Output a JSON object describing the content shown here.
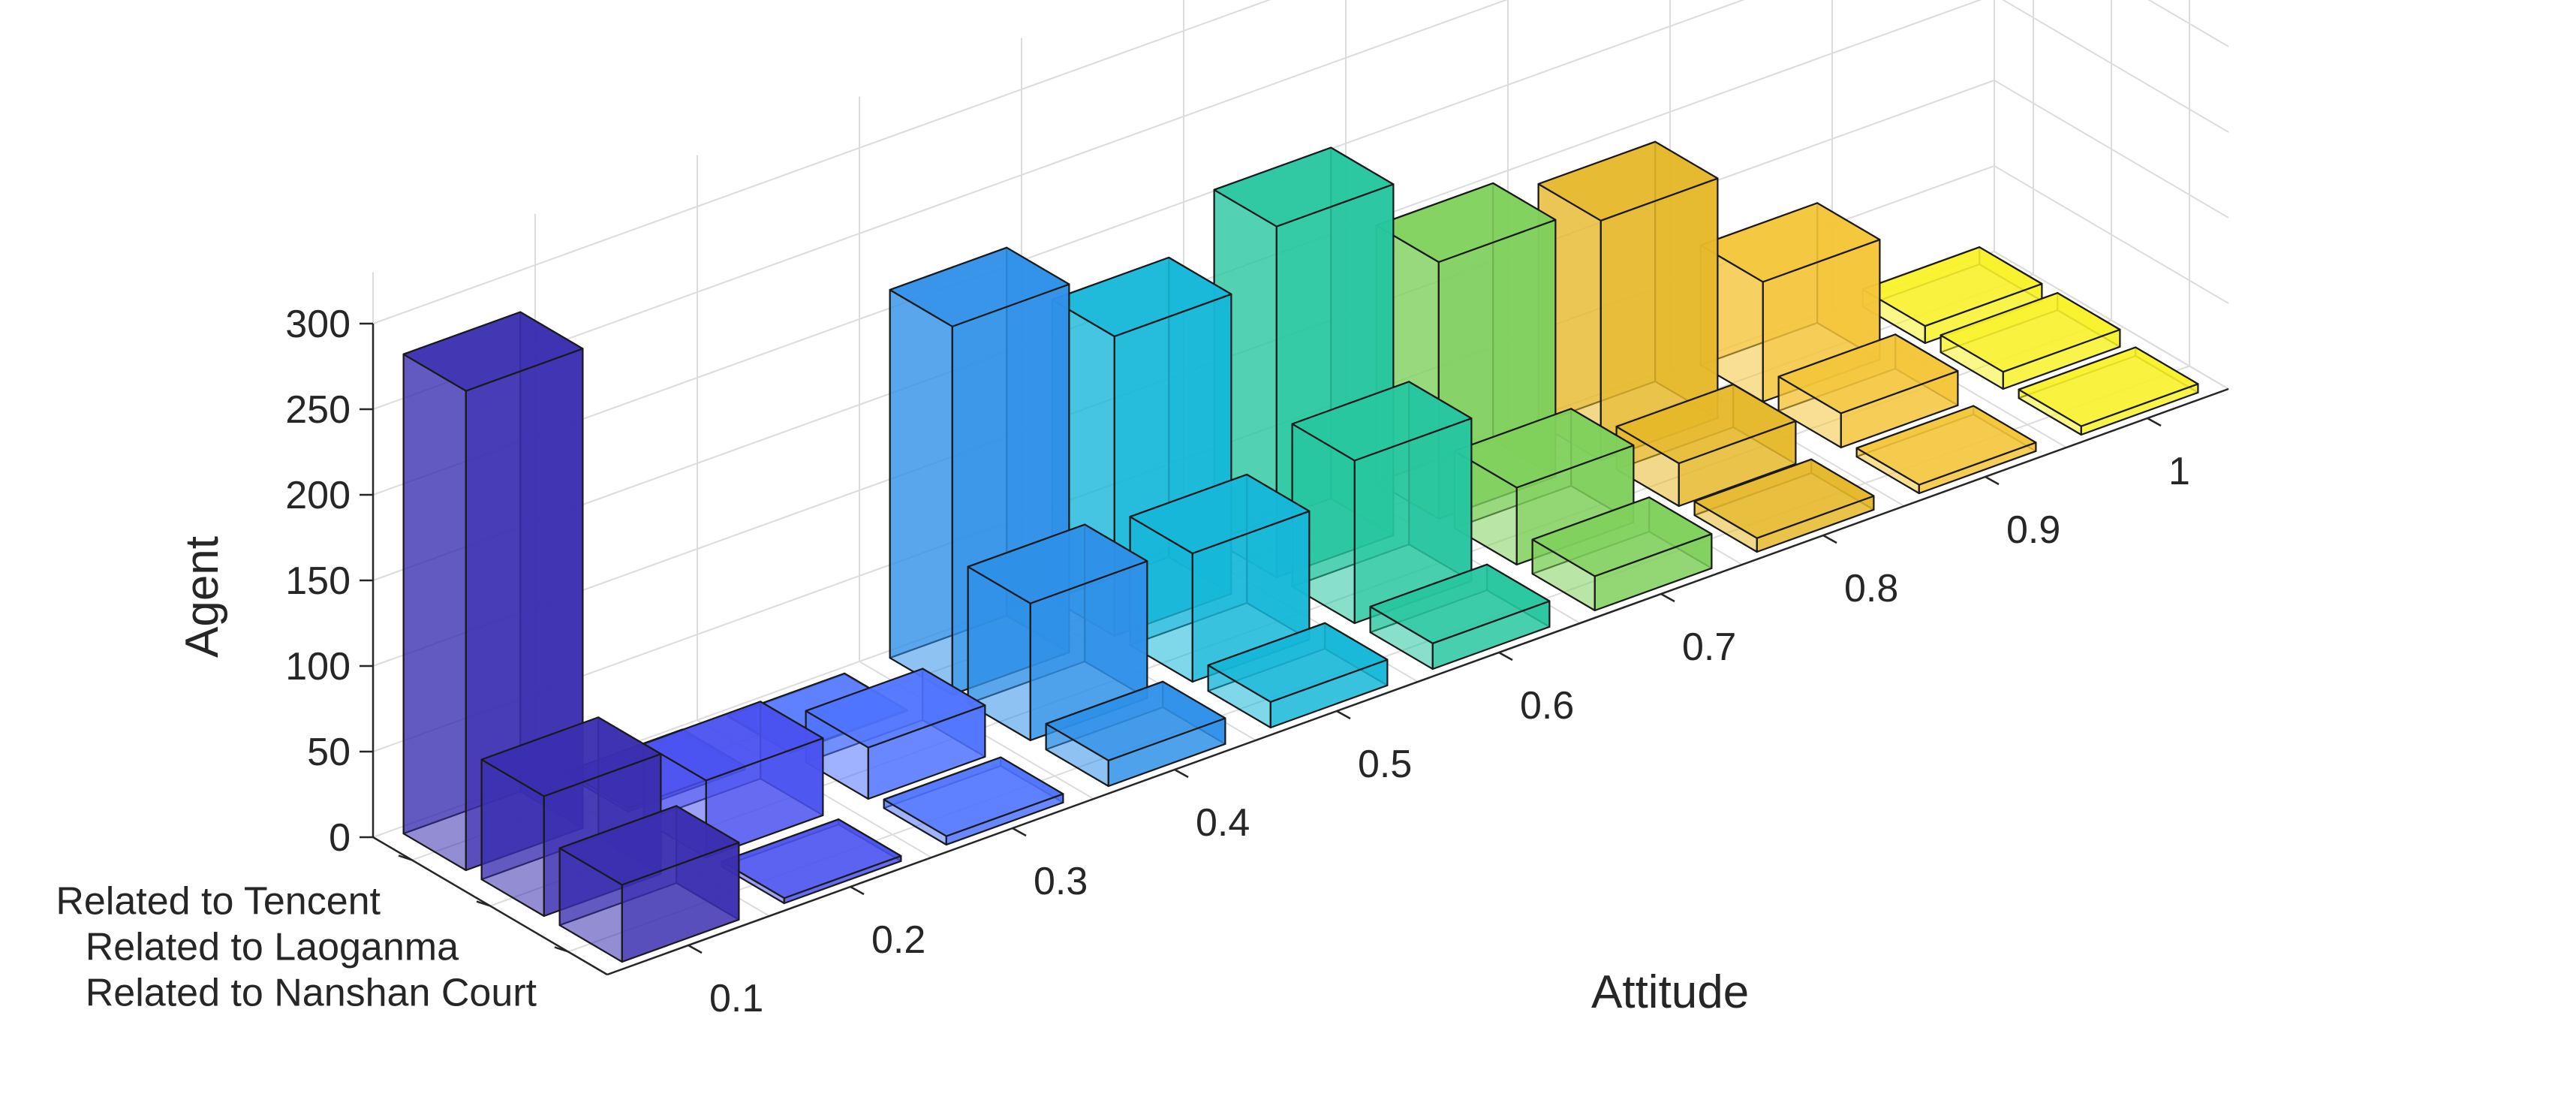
{
  "chart_data": {
    "type": "bar3d",
    "title": "",
    "xlabel": "Attitude",
    "ylabel": "",
    "zlabel": "Agent",
    "x_categories": [
      "0.1",
      "0.2",
      "0.3",
      "0.4",
      "0.5",
      "0.6",
      "0.7",
      "0.8",
      "0.9",
      "1"
    ],
    "y_categories": [
      "Related to Tencent",
      "Related to Laoganma",
      "Related to Nanshan Court"
    ],
    "zlim": [
      0,
      300
    ],
    "z_ticks": [
      "0",
      "50",
      "100",
      "150",
      "200",
      "250",
      "300"
    ],
    "grid": true,
    "series": [
      {
        "name": "Related to Tencent",
        "values": [
          280,
          2,
          0,
          215,
          175,
          205,
          150,
          140,
          70,
          10
        ]
      },
      {
        "name": "Related to Laoganma",
        "values": [
          70,
          45,
          30,
          80,
          75,
          95,
          45,
          25,
          20,
          10
        ]
      },
      {
        "name": "Related to Nanshan Court",
        "values": [
          45,
          3,
          5,
          15,
          15,
          15,
          20,
          8,
          5,
          5
        ]
      }
    ],
    "colors": [
      "#3b2fb0",
      "#4a52f0",
      "#4f73ff",
      "#2f90e8",
      "#16b7d8",
      "#27c7a0",
      "#7fd05c",
      "#e6b82a",
      "#f4c53a",
      "#f8f22a"
    ]
  }
}
